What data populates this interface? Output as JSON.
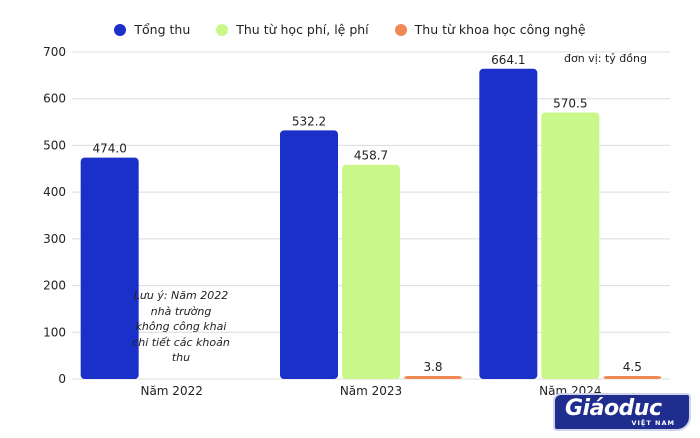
{
  "chart_data": {
    "type": "bar",
    "categories": [
      "Năm 2022",
      "Năm 2023",
      "Năm 2024"
    ],
    "series": [
      {
        "name": "Tổng thu",
        "color": "#1a30c8",
        "values": [
          474.0,
          532.2,
          664.1
        ],
        "labels": [
          "474.0",
          "532.2",
          "664.1"
        ]
      },
      {
        "name": "Thu từ học phí, lệ phí",
        "color": "#c9f78a",
        "values": [
          null,
          458.7,
          570.5
        ],
        "labels": [
          "",
          "458.7",
          "570.5"
        ]
      },
      {
        "name": "Thu từ khoa học công nghệ",
        "color": "#f08a55",
        "values": [
          null,
          3.8,
          4.5
        ],
        "labels": [
          "",
          "3.8",
          "4.5"
        ]
      }
    ],
    "ylim": [
      0,
      700
    ],
    "yticks": [
      0,
      100,
      200,
      300,
      400,
      500,
      600,
      700
    ],
    "grid": true,
    "legend_position": "top-center"
  },
  "unit_note": "đơn vị: tỷ đồng",
  "side_note": "Lưu ý: Năm 2022 nhà trường không công khai chi tiết các khoản thu",
  "logo": {
    "main": "Giáoduc",
    "sub": "VIỆT NAM"
  }
}
